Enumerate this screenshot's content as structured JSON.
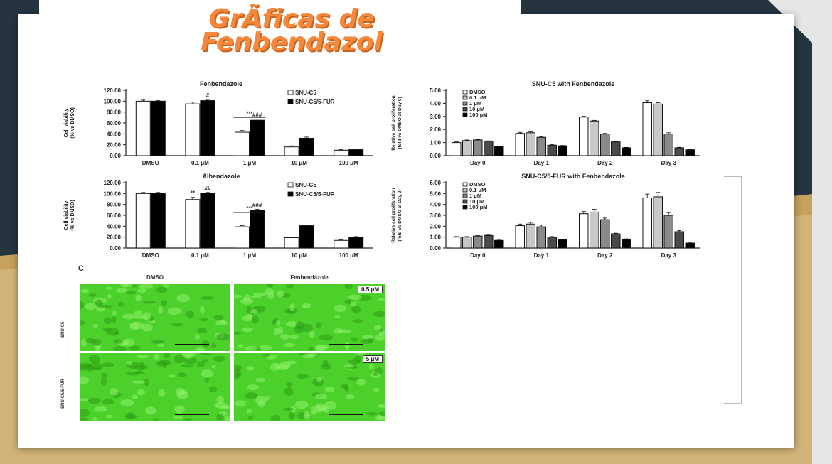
{
  "slide": {
    "title_lines": [
      "GrÃficas de",
      "Fenbendazol"
    ],
    "colors": {
      "accent_orange": "#f5883a",
      "navy": "#243540",
      "gold": "#c7a25c"
    }
  },
  "chart_data": [
    {
      "type": "bar",
      "title": "Fenbendazole",
      "ylabel_lines": [
        "Cell viability",
        "(% vs DMSO)"
      ],
      "categories": [
        "DMSO",
        "0.1 μM",
        "1 μM",
        "10 μM",
        "100 μM"
      ],
      "ylim": [
        0,
        120
      ],
      "yticks": [
        "0.00",
        "20.00",
        "40.00",
        "60.00",
        "80.00",
        "100.00",
        "120.00"
      ],
      "series": [
        {
          "name": "SNU-C5",
          "color": "#ffffff",
          "values": [
            100,
            95,
            43,
            16,
            10
          ],
          "errors": [
            2,
            3,
            3,
            2,
            1
          ]
        },
        {
          "name": "SNU-C5/5-FUR",
          "color": "#000000",
          "values": [
            100,
            101,
            65,
            32,
            11
          ],
          "errors": [
            1,
            2,
            2,
            2,
            1
          ]
        }
      ],
      "annotations": [
        {
          "category": 1,
          "series": 1,
          "text": "#"
        },
        {
          "category": 2,
          "series": 0,
          "text": "***"
        },
        {
          "category": 2,
          "series": 1,
          "text": "###"
        }
      ],
      "legend": "top-right"
    },
    {
      "type": "bar",
      "title": "Albendazole",
      "ylabel_lines": [
        "Cell viability",
        "(% vs DMSO)"
      ],
      "categories": [
        "DMSO",
        "0.1 μM",
        "1 μM",
        "10 μM",
        "100 μM"
      ],
      "ylim": [
        0,
        120
      ],
      "yticks": [
        "0.00",
        "20.00",
        "40.00",
        "60.00",
        "80.00",
        "100.00",
        "120.00"
      ],
      "series": [
        {
          "name": "SNU-C5",
          "color": "#ffffff",
          "values": [
            100,
            89,
            39,
            19,
            14
          ],
          "errors": [
            2,
            4,
            2,
            1,
            1
          ]
        },
        {
          "name": "SNU-C5/5-FUR",
          "color": "#000000",
          "values": [
            100,
            101,
            69,
            41,
            19
          ],
          "errors": [
            2,
            1,
            2,
            1,
            2
          ]
        }
      ],
      "annotations": [
        {
          "category": 1,
          "series": 0,
          "text": "**"
        },
        {
          "category": 1,
          "series": 1,
          "text": "##"
        },
        {
          "category": 2,
          "series": 0,
          "text": "***"
        },
        {
          "category": 2,
          "series": 1,
          "text": "###"
        }
      ],
      "legend": "top-right"
    },
    {
      "type": "bar",
      "title": "SNU-C5 with Fenbendazole",
      "ylabel_lines": [
        "Relative cell proliferation",
        "(fold vs DMSO at Day 0)"
      ],
      "categories": [
        "Day 0",
        "Day 1",
        "Day 2",
        "Day 3"
      ],
      "ylim": [
        0,
        5
      ],
      "yticks": [
        "0.00",
        "1.00",
        "2.00",
        "3.00",
        "4.00",
        "5.00"
      ],
      "series": [
        {
          "name": "DMSO",
          "color": "#ffffff",
          "values": [
            1.0,
            1.7,
            2.95,
            4.05
          ],
          "errors": [
            0.05,
            0.08,
            0.06,
            0.15
          ]
        },
        {
          "name": "0.1 μM",
          "color": "#c8c8c8",
          "values": [
            1.15,
            1.75,
            2.65,
            3.95
          ],
          "errors": [
            0.05,
            0.07,
            0.05,
            0.1
          ]
        },
        {
          "name": "1 μM",
          "color": "#8a8a8a",
          "values": [
            1.2,
            1.4,
            1.65,
            1.65
          ],
          "errors": [
            0.04,
            0.06,
            0.05,
            0.1
          ]
        },
        {
          "name": "10 μM",
          "color": "#4a4a4a",
          "values": [
            1.1,
            0.8,
            1.05,
            0.6
          ],
          "errors": [
            0.03,
            0.04,
            0.04,
            0.04
          ]
        },
        {
          "name": "100 μM",
          "color": "#000000",
          "values": [
            0.7,
            0.75,
            0.6,
            0.45
          ],
          "errors": [
            0.03,
            0.03,
            0.03,
            0.03
          ]
        }
      ],
      "legend": "top-left"
    },
    {
      "type": "bar",
      "title": "SNU-C5/5-FUR with Fenbendazole",
      "ylabel_lines": [
        "Relative cell proliferation",
        "(fold vs DMSO at Day 0)"
      ],
      "categories": [
        "Day 0",
        "Day 1",
        "Day 2",
        "Day 3"
      ],
      "ylim": [
        0,
        6
      ],
      "yticks": [
        "0.00",
        "1.00",
        "2.00",
        "3.00",
        "4.00",
        "5.00",
        "6.00"
      ],
      "series": [
        {
          "name": "DMSO",
          "color": "#ffffff",
          "values": [
            1.0,
            2.05,
            3.15,
            4.6
          ],
          "errors": [
            0.05,
            0.15,
            0.2,
            0.35
          ]
        },
        {
          "name": "0.1 μM",
          "color": "#c8c8c8",
          "values": [
            1.0,
            2.2,
            3.3,
            4.7
          ],
          "errors": [
            0.05,
            0.15,
            0.25,
            0.4
          ]
        },
        {
          "name": "1 μM",
          "color": "#8a8a8a",
          "values": [
            1.1,
            1.95,
            2.6,
            3.0
          ],
          "errors": [
            0.04,
            0.15,
            0.15,
            0.25
          ]
        },
        {
          "name": "10 μM",
          "color": "#4a4a4a",
          "values": [
            1.15,
            1.0,
            1.3,
            1.5
          ],
          "errors": [
            0.04,
            0.05,
            0.06,
            0.1
          ]
        },
        {
          "name": "100 μM",
          "color": "#000000",
          "values": [
            0.7,
            0.75,
            0.8,
            0.45
          ],
          "errors": [
            0.03,
            0.03,
            0.04,
            0.03
          ]
        }
      ],
      "legend": "top-left"
    }
  ],
  "micrographs": {
    "panel_label": "C",
    "columns": [
      "DMSO",
      "Fenbendazole"
    ],
    "rows": [
      "SNU-C5",
      "SNU-C5/5-FUR"
    ],
    "concentrations": [
      "0.5 μM",
      "5 μM"
    ],
    "color": "#4cd12a"
  }
}
